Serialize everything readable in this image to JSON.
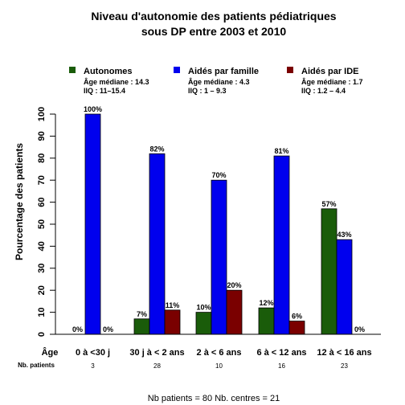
{
  "chart_data": {
    "type": "bar",
    "title_lines": [
      "Niveau d'autonomie des patients pédiatriques",
      "sous DP entre 2003 et 2010"
    ],
    "ylabel": "Pourcentage des patients",
    "ylim": [
      0,
      100
    ],
    "yticks": [
      0,
      10,
      20,
      30,
      40,
      50,
      60,
      70,
      80,
      90,
      100
    ],
    "x_axis_label": "Âge",
    "patients_label": "Nb. patients",
    "categories": [
      "0 à <30 j",
      "30 j à < 2 ans",
      "2 à < 6 ans",
      "6 à < 12 ans",
      "12 à < 16 ans"
    ],
    "patients": [
      "3",
      "28",
      "10",
      "16",
      "23"
    ],
    "series": [
      {
        "name": "Autonomes",
        "color": "#1a5c0a",
        "values": [
          0,
          7,
          10,
          12,
          57
        ],
        "labels": [
          "0%",
          "7%",
          "10%",
          "12%",
          "57%"
        ],
        "legend_lines": [
          "Âge médiane : 14.3",
          "IIQ : 11–15.4"
        ]
      },
      {
        "name": "Aidés par famille",
        "color": "#0000ee",
        "values": [
          100,
          82,
          70,
          81,
          43
        ],
        "labels": [
          "100%",
          "82%",
          "70%",
          "81%",
          "43%"
        ],
        "legend_lines": [
          "Âge médiane : 4.3",
          "IIQ :  1 – 9.3"
        ]
      },
      {
        "name": "Aidés par IDE",
        "color": "#7a0000",
        "values": [
          0,
          11,
          20,
          6,
          0
        ],
        "labels": [
          "0%",
          "11%",
          "20%",
          "6%",
          "0%"
        ],
        "legend_lines": [
          "Âge médiane : 1.7",
          "IIQ :  1.2 – 4.4"
        ]
      }
    ],
    "grid": false,
    "legend_position": "top"
  },
  "footer": {
    "text": "Nb patients =  80     Nb. centres =  21"
  }
}
